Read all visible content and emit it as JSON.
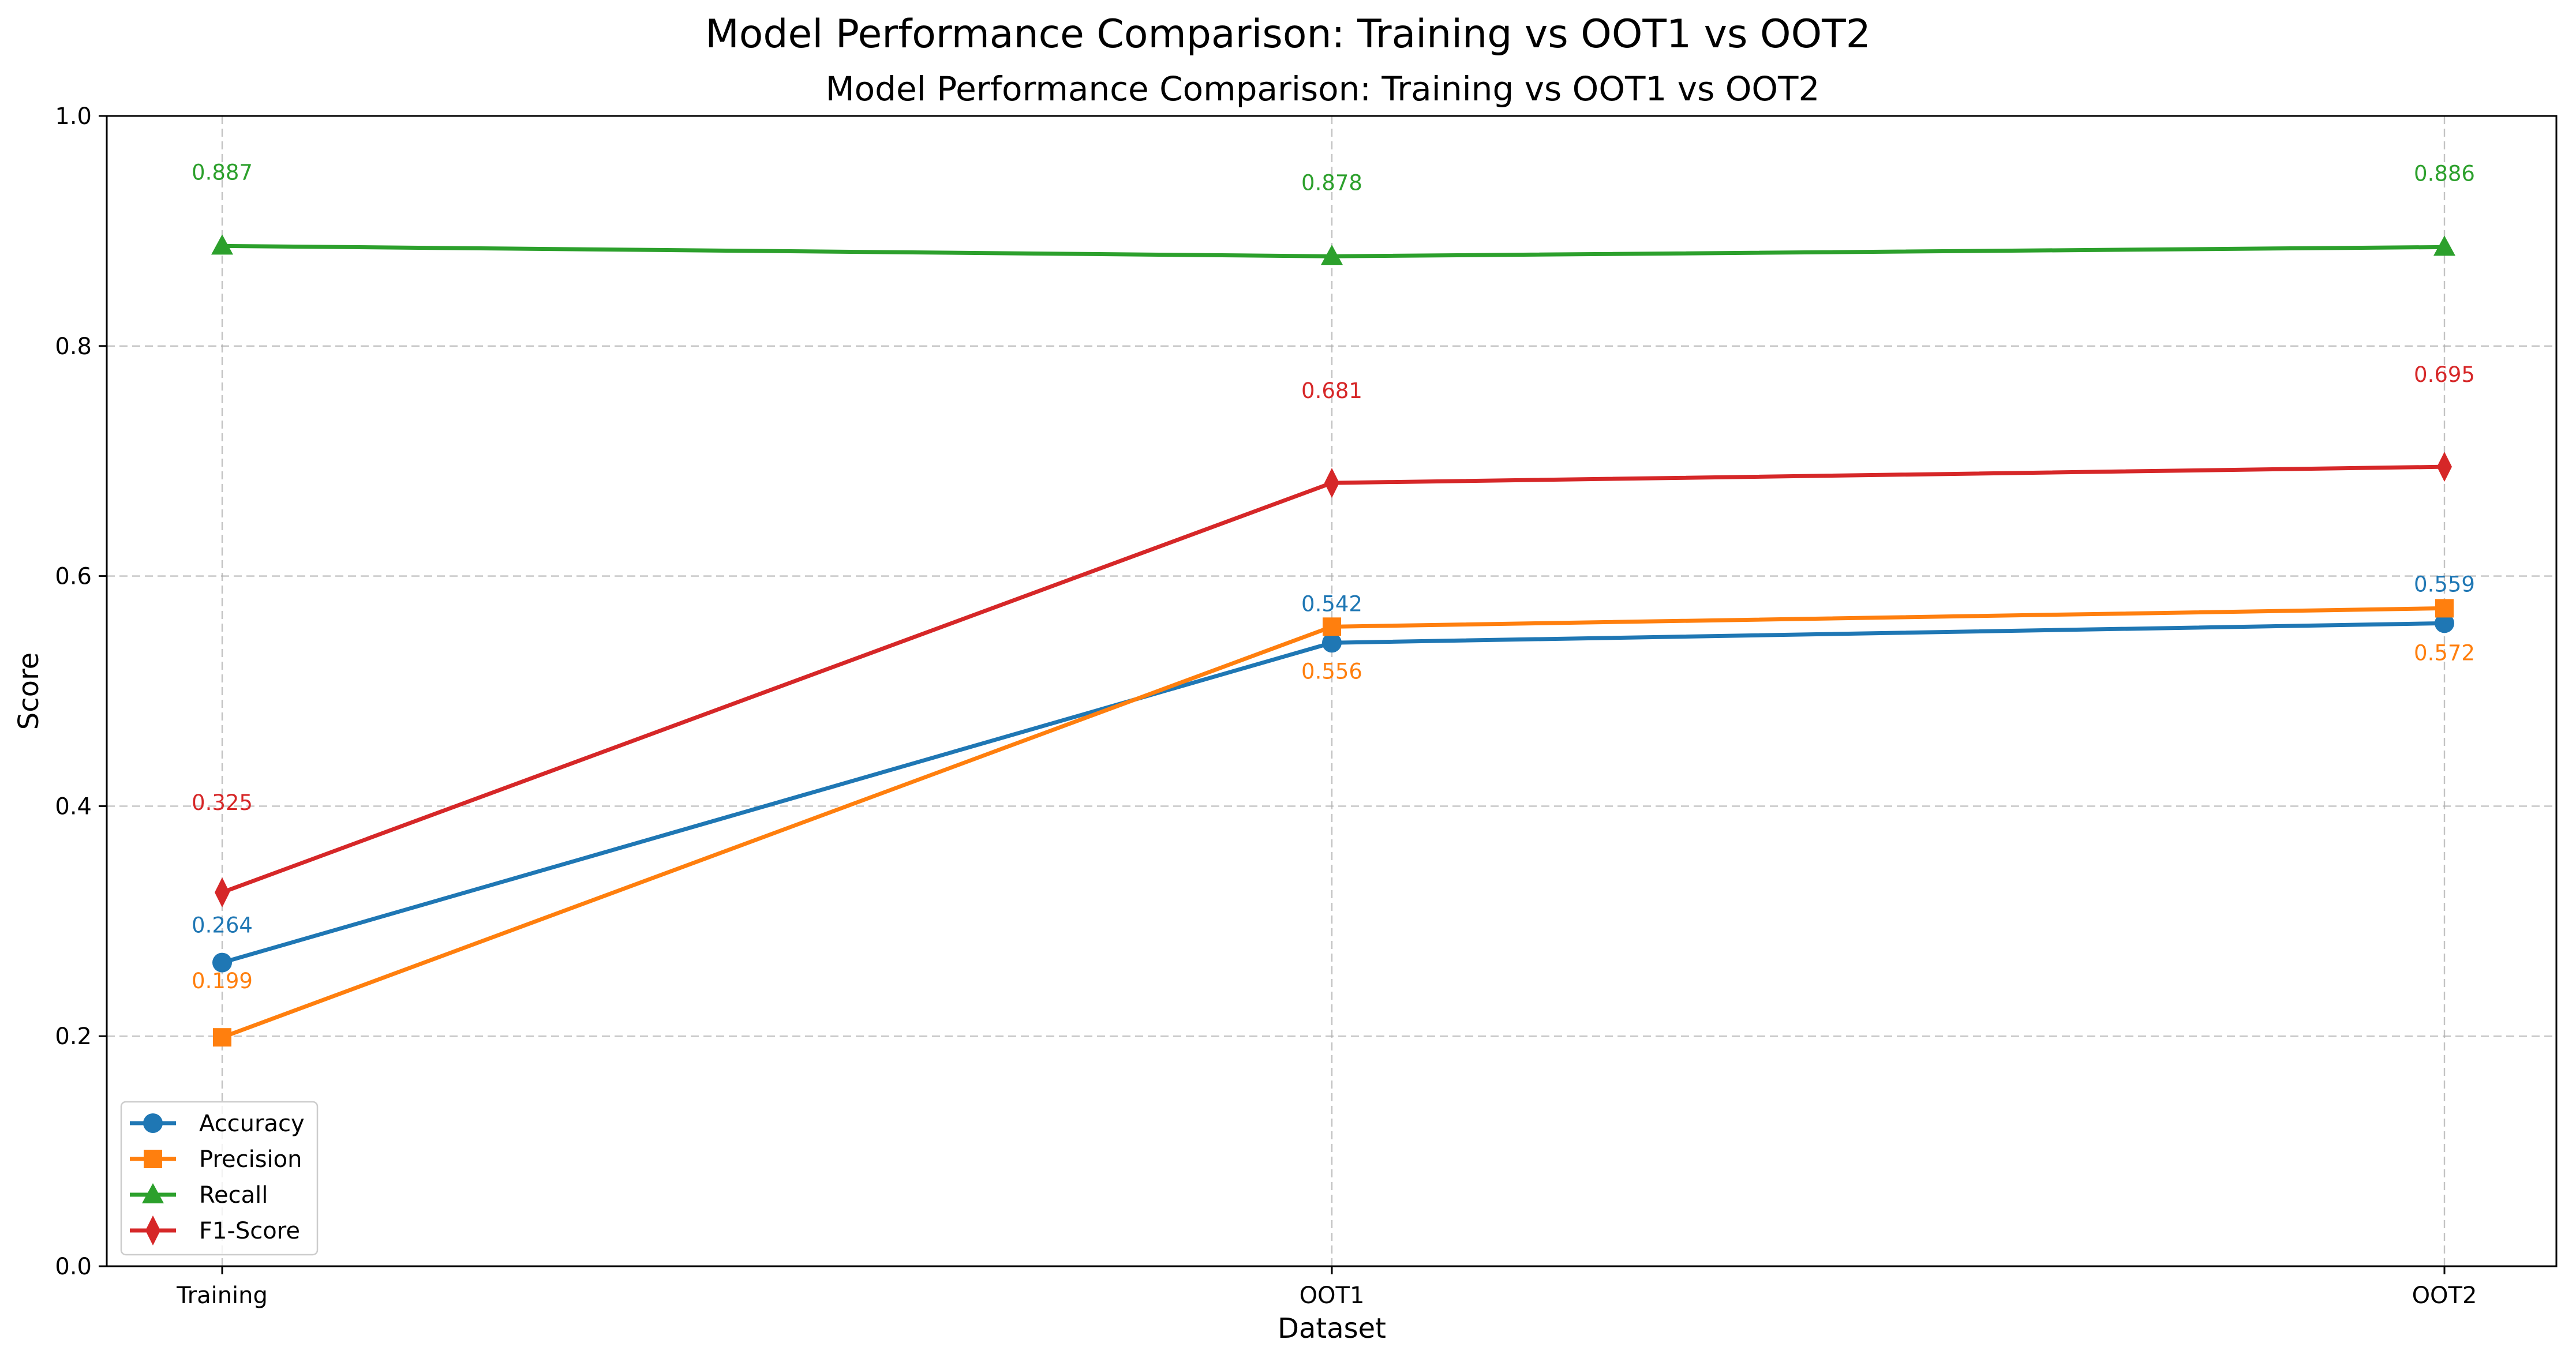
{
  "chart_data": {
    "type": "line",
    "suptitle": "Model Performance Comparison: Training vs OOT1 vs OOT2",
    "title": "Model Performance Comparison: Training vs OOT1 vs OOT2",
    "xlabel": "Dataset",
    "ylabel": "Score",
    "categories": [
      "Training",
      "OOT1",
      "OOT2"
    ],
    "ylim": [
      0,
      1.0
    ],
    "yticks": [
      "0.0",
      "0.2",
      "0.4",
      "0.6",
      "0.8",
      "1.0"
    ],
    "grid": true,
    "legend_position": "lower-left",
    "series": [
      {
        "name": "Accuracy",
        "values": [
          0.264,
          0.542,
          0.559
        ],
        "labels": [
          "0.264",
          "0.542",
          "0.559"
        ],
        "color": "#1f77b4",
        "marker": "circle"
      },
      {
        "name": "Precision",
        "values": [
          0.199,
          0.556,
          0.572
        ],
        "labels": [
          "0.199",
          "0.556",
          "0.572"
        ],
        "color": "#ff7f0e",
        "marker": "square"
      },
      {
        "name": "Recall",
        "values": [
          0.887,
          0.878,
          0.886
        ],
        "labels": [
          "0.887",
          "0.878",
          "0.886"
        ],
        "color": "#2ca02c",
        "marker": "triangle"
      },
      {
        "name": "F1-Score",
        "values": [
          0.325,
          0.681,
          0.695
        ],
        "labels": [
          "0.325",
          "0.681",
          "0.695"
        ],
        "color": "#d62728",
        "marker": "diamond"
      }
    ]
  }
}
